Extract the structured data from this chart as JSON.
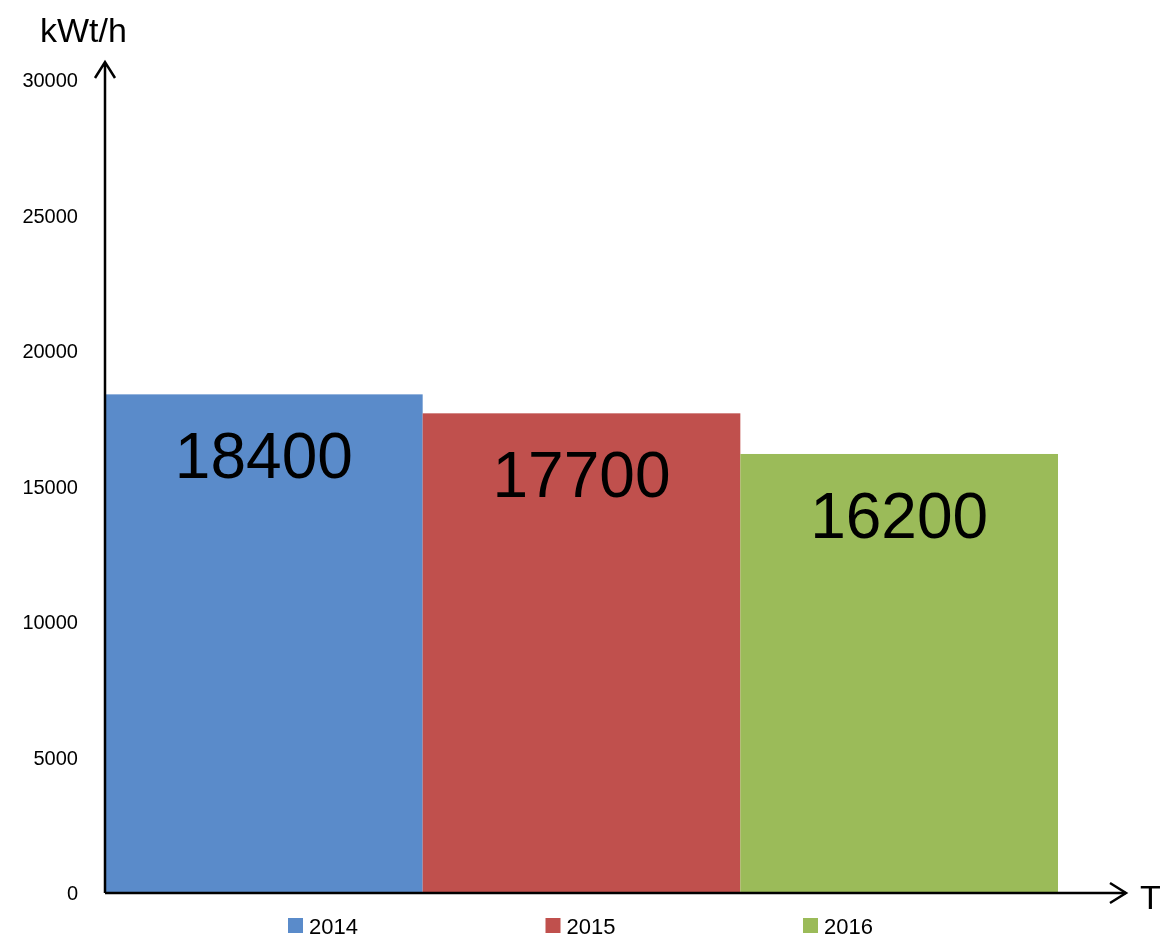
{
  "chart_data": {
    "type": "bar",
    "xlabel": "T",
    "ylabel": "kWt/h",
    "categories": [
      null
    ],
    "series": [
      {
        "name": "2014",
        "color": "#5a8bca",
        "values": [
          18400
        ]
      },
      {
        "name": "2015",
        "color": "#c0504d",
        "values": [
          17700
        ]
      },
      {
        "name": "2016",
        "color": "#9bbb59",
        "values": [
          16200
        ]
      }
    ],
    "ylim": [
      0,
      30000
    ],
    "yticks": [
      0,
      5000,
      10000,
      15000,
      20000,
      25000,
      30000
    ],
    "data_labels": true,
    "legend": "bottom",
    "grid": false
  }
}
